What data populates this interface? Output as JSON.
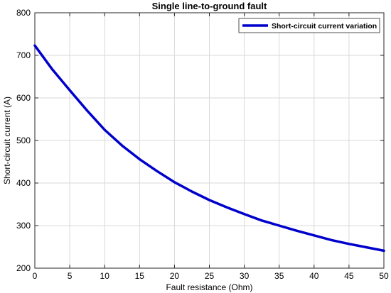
{
  "chart_data": {
    "type": "line",
    "title": "Single line-to-ground fault",
    "xlabel": "Fault resistance (Ohm)",
    "ylabel": "Short-circuit current (A)",
    "xlim": [
      0,
      50
    ],
    "ylim": [
      200,
      800
    ],
    "xticks": [
      0,
      5,
      10,
      15,
      20,
      25,
      30,
      35,
      40,
      45,
      50
    ],
    "yticks": [
      200,
      300,
      400,
      500,
      600,
      700,
      800
    ],
    "grid": true,
    "legend_position": "top-right",
    "series": [
      {
        "name": "Short-circuit current variation",
        "color": "#0000cc",
        "x": [
          0,
          2.5,
          5,
          7.5,
          10,
          12.5,
          15,
          17.5,
          20,
          22.5,
          25,
          27.5,
          30,
          32.5,
          35,
          37.5,
          40,
          42.5,
          45,
          47.5,
          50
        ],
        "y": [
          723,
          667,
          618,
          570,
          525,
          488,
          456,
          428,
          402,
          380,
          360,
          343,
          327,
          312,
          300,
          288,
          277,
          266,
          257,
          249,
          241
        ]
      }
    ]
  }
}
